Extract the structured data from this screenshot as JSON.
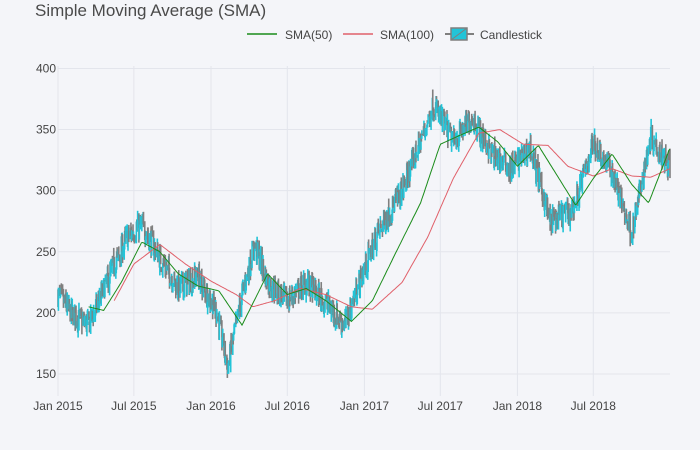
{
  "chart_data": {
    "type": "candlestick",
    "title": "Simple Moving Average (SMA)",
    "legend": {
      "placement": "top-center",
      "entries": [
        {
          "name": "SMA(50)",
          "color": "#1a8c1a"
        },
        {
          "name": "SMA(100)",
          "color": "#e0606a"
        },
        {
          "name": "Candlestick",
          "color": "#22c4d8"
        }
      ]
    },
    "x_ticks": [
      "Jan 2015",
      "Jul 2015",
      "Jan 2016",
      "Jul 2016",
      "Jan 2017",
      "Jul 2017",
      "Jan 2018",
      "Jul 2018"
    ],
    "x_range": [
      "2015-01-01",
      "2018-12-31"
    ],
    "y_ticks": [
      150,
      200,
      250,
      300,
      350,
      400
    ],
    "ylim": [
      132,
      402
    ],
    "grid": true,
    "colors": {
      "increasing": "#22c4d8",
      "decreasing": "#7f7f7f"
    },
    "close_anchors": [
      [
        "2015-01-01",
        215
      ],
      [
        "2015-02-01",
        200
      ],
      [
        "2015-03-15",
        190
      ],
      [
        "2015-05-01",
        228
      ],
      [
        "2015-06-15",
        262
      ],
      [
        "2015-07-20",
        272
      ],
      [
        "2015-09-01",
        245
      ],
      [
        "2015-10-15",
        220
      ],
      [
        "2015-12-01",
        230
      ],
      [
        "2016-01-15",
        200
      ],
      [
        "2016-02-10",
        155
      ],
      [
        "2016-03-15",
        215
      ],
      [
        "2016-04-15",
        255
      ],
      [
        "2016-05-15",
        225
      ],
      [
        "2016-07-01",
        210
      ],
      [
        "2016-08-15",
        225
      ],
      [
        "2016-10-01",
        208
      ],
      [
        "2016-11-15",
        190
      ],
      [
        "2016-12-15",
        220
      ],
      [
        "2017-02-01",
        265
      ],
      [
        "2017-04-01",
        300
      ],
      [
        "2017-06-15",
        370
      ],
      [
        "2017-08-01",
        340
      ],
      [
        "2017-09-15",
        360
      ],
      [
        "2017-11-01",
        330
      ],
      [
        "2017-12-15",
        318
      ],
      [
        "2018-02-01",
        335
      ],
      [
        "2018-03-20",
        275
      ],
      [
        "2018-05-15",
        285
      ],
      [
        "2018-07-01",
        340
      ],
      [
        "2018-08-15",
        315
      ],
      [
        "2018-10-01",
        265
      ],
      [
        "2018-11-15",
        345
      ],
      [
        "2018-12-31",
        320
      ]
    ],
    "sma50_anchors": [
      [
        "2015-03-15",
        205
      ],
      [
        "2015-04-20",
        202
      ],
      [
        "2015-06-01",
        225
      ],
      [
        "2015-07-20",
        258
      ],
      [
        "2015-09-01",
        250
      ],
      [
        "2015-10-15",
        232
      ],
      [
        "2015-12-01",
        222
      ],
      [
        "2016-01-20",
        218
      ],
      [
        "2016-03-15",
        190
      ],
      [
        "2016-05-15",
        232
      ],
      [
        "2016-07-01",
        215
      ],
      [
        "2016-08-15",
        220
      ],
      [
        "2016-10-01",
        210
      ],
      [
        "2016-12-01",
        193
      ],
      [
        "2017-01-20",
        210
      ],
      [
        "2017-03-15",
        248
      ],
      [
        "2017-05-15",
        290
      ],
      [
        "2017-07-01",
        338
      ],
      [
        "2017-08-15",
        345
      ],
      [
        "2017-10-01",
        352
      ],
      [
        "2017-11-15",
        340
      ],
      [
        "2018-01-01",
        320
      ],
      [
        "2018-02-20",
        337
      ],
      [
        "2018-04-01",
        315
      ],
      [
        "2018-05-20",
        288
      ],
      [
        "2018-07-01",
        310
      ],
      [
        "2018-08-15",
        330
      ],
      [
        "2018-10-01",
        305
      ],
      [
        "2018-11-10",
        290
      ],
      [
        "2018-12-31",
        335
      ]
    ],
    "sma100_anchors": [
      [
        "2015-05-15",
        210
      ],
      [
        "2015-07-01",
        240
      ],
      [
        "2015-09-01",
        256
      ],
      [
        "2015-11-01",
        240
      ],
      [
        "2016-01-01",
        226
      ],
      [
        "2016-03-01",
        215
      ],
      [
        "2016-04-10",
        205
      ],
      [
        "2016-06-01",
        210
      ],
      [
        "2016-08-01",
        220
      ],
      [
        "2016-10-01",
        215
      ],
      [
        "2016-12-01",
        205
      ],
      [
        "2017-01-20",
        203
      ],
      [
        "2017-04-01",
        225
      ],
      [
        "2017-06-01",
        262
      ],
      [
        "2017-08-01",
        310
      ],
      [
        "2017-10-01",
        347
      ],
      [
        "2017-11-20",
        350
      ],
      [
        "2018-01-15",
        338
      ],
      [
        "2018-03-15",
        337
      ],
      [
        "2018-05-01",
        320
      ],
      [
        "2018-07-01",
        312
      ],
      [
        "2018-08-15",
        318
      ],
      [
        "2018-10-01",
        312
      ],
      [
        "2018-11-15",
        311
      ],
      [
        "2018-12-31",
        318
      ]
    ]
  }
}
